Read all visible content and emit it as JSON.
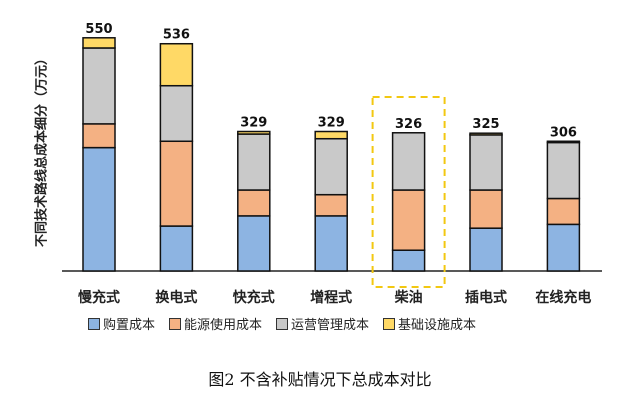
{
  "chart_data": {
    "type": "bar",
    "stacked": true,
    "title": "图2 不含补贴情况下总成本对比",
    "ylabel": "不同技术路线总成本细分（万元）",
    "xlabel": "",
    "ylim": [
      0,
      560
    ],
    "categories": [
      "慢充式",
      "换电式",
      "快充式",
      "增程式",
      "柴油",
      "插电式",
      "在线充电"
    ],
    "totals": [
      "550",
      "536",
      "329",
      "329",
      "326",
      "325",
      "306"
    ],
    "series": [
      {
        "name": "购置成本",
        "color": "#8DB4E2",
        "values": [
          291,
          106,
          130,
          130,
          49,
          101,
          110
        ]
      },
      {
        "name": "能源使用成本",
        "color": "#F4B183",
        "values": [
          56,
          200,
          61,
          50,
          142,
          90,
          61
        ]
      },
      {
        "name": "运营管理成本",
        "color": "#C9C9C9",
        "values": [
          179,
          131,
          132,
          132,
          135,
          130,
          132
        ]
      },
      {
        "name": "基础设施成本",
        "color": "#FFD966",
        "values": [
          24,
          99,
          6,
          17,
          0,
          4,
          3
        ]
      }
    ],
    "highlight_category": "柴油",
    "legend_position": "bottom",
    "grid": false
  }
}
